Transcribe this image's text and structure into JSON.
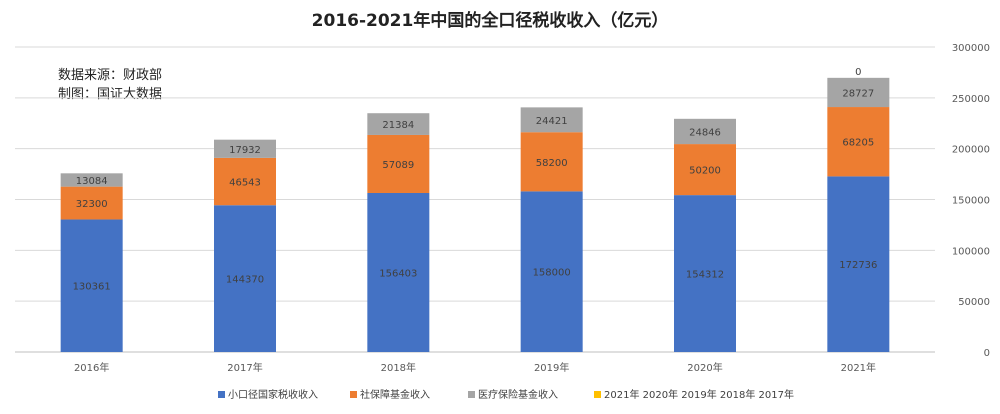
{
  "chart_data": {
    "type": "bar",
    "stacked": true,
    "title": "2016-2021年中国的全口径税收收入（亿元）",
    "annotation_lines": [
      "数据来源：财政部",
      "制图：国证大数据"
    ],
    "categories": [
      "2016年",
      "2017年",
      "2018年",
      "2019年",
      "2020年",
      "2021年"
    ],
    "series": [
      {
        "name": "小口径国家税收收入",
        "color": "#4472C4",
        "values": [
          130361,
          144370,
          156403,
          158000,
          154312,
          172736
        ]
      },
      {
        "name": "社保障基金收入",
        "color": "#ED7D31",
        "values": [
          32300,
          46543,
          57089,
          58200,
          50200,
          68205
        ]
      },
      {
        "name": "医疗保险基金收入",
        "color": "#A5A5A5",
        "values": [
          13084,
          17932,
          21384,
          24421,
          24846,
          28727
        ]
      }
    ],
    "extra_labels": [
      {
        "category": "2021年",
        "value": 0
      }
    ],
    "extra_legend": {
      "name": "2021年 2020年 2019年 2018年 2017年",
      "color": "#FFC000"
    },
    "yaxis": {
      "position": "right",
      "min": 0,
      "max": 300000,
      "ticks": [
        0,
        50000,
        100000,
        150000,
        200000,
        250000,
        300000
      ]
    },
    "grid": true,
    "legend_position": "bottom"
  }
}
